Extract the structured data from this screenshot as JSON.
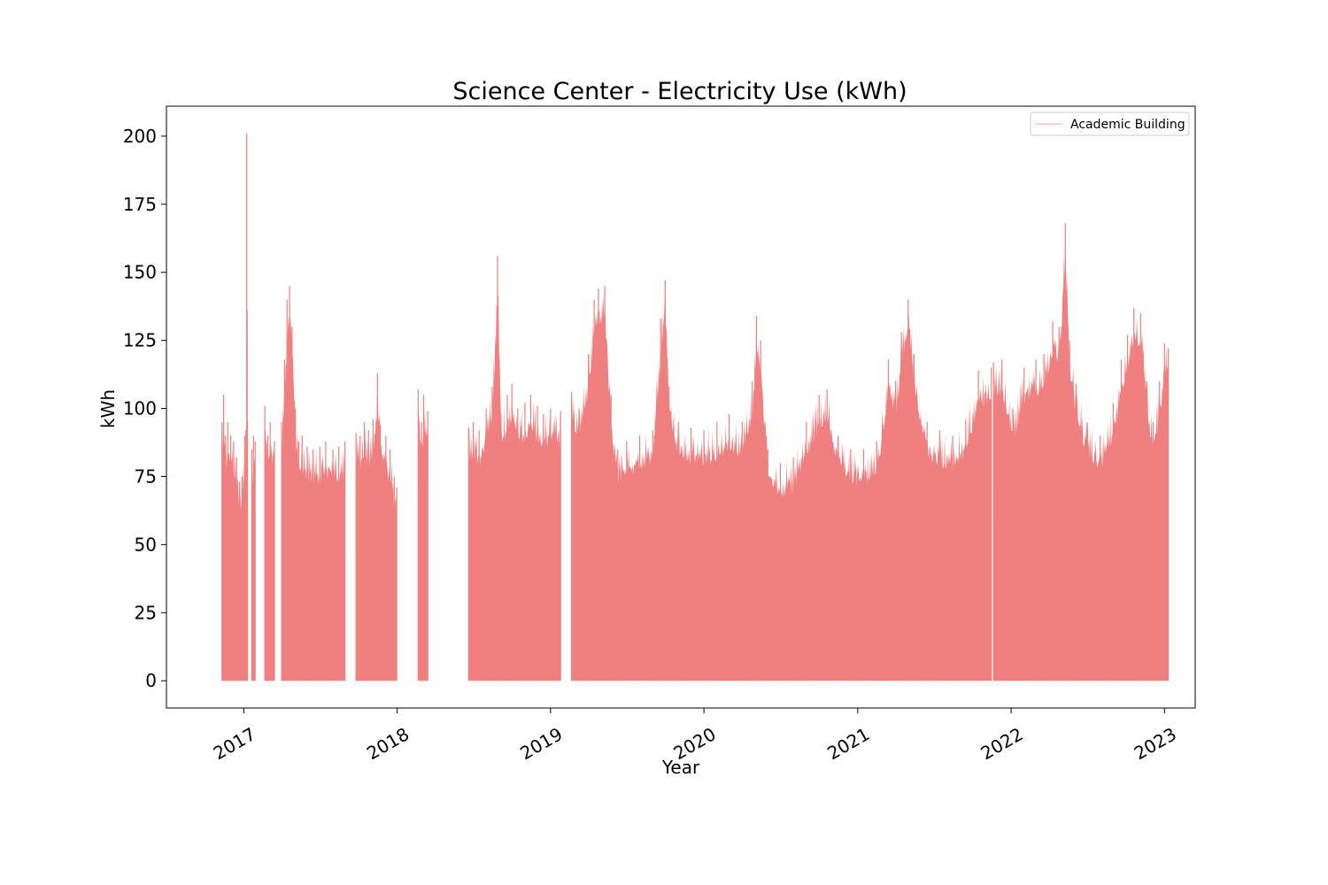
{
  "chart_data": {
    "type": "area",
    "title": "Science Center - Electricity Use (kWh)",
    "xlabel": "Year",
    "ylabel": "kWh",
    "xlim": [
      "2016-07-01",
      "2023-03-15"
    ],
    "ylim": [
      -10,
      211
    ],
    "xticks": [
      "2017",
      "2018",
      "2019",
      "2020",
      "2021",
      "2022",
      "2023"
    ],
    "yticks": [
      0,
      25,
      50,
      75,
      100,
      125,
      150,
      175,
      200
    ],
    "grid": false,
    "legend": {
      "placement": "top-right",
      "entries": [
        "Academic Building"
      ]
    },
    "colors": {
      "fill": "#f08080",
      "legend_line": "#f4b8b8",
      "axes": "#000000"
    },
    "series": [
      {
        "name": "Academic Building",
        "segments": [
          {
            "start": "2016-11-10",
            "end": "2017-01-10",
            "points": [
              [
                "2016-11-10",
                95
              ],
              [
                "2016-11-14",
                105
              ],
              [
                "2016-11-18",
                90
              ],
              [
                "2016-11-24",
                95
              ],
              [
                "2016-12-01",
                90
              ],
              [
                "2016-12-08",
                88
              ],
              [
                "2016-12-15",
                82
              ],
              [
                "2016-12-22",
                73
              ],
              [
                "2016-12-28",
                75
              ],
              [
                "2017-01-03",
                90
              ],
              [
                "2017-01-06",
                92
              ],
              [
                "2017-01-08",
                201
              ],
              [
                "2017-01-10",
                95
              ]
            ]
          },
          {
            "start": "2017-01-20",
            "end": "2017-01-28",
            "points": [
              [
                "2017-01-20",
                85
              ],
              [
                "2017-01-24",
                90
              ],
              [
                "2017-01-28",
                88
              ]
            ]
          },
          {
            "start": "2017-02-20",
            "end": "2017-03-15",
            "points": [
              [
                "2017-02-20",
                101
              ],
              [
                "2017-02-27",
                90
              ],
              [
                "2017-03-05",
                95
              ],
              [
                "2017-03-15",
                88
              ]
            ]
          },
          {
            "start": "2017-04-01",
            "end": "2017-08-30",
            "points": [
              [
                "2017-04-01",
                95
              ],
              [
                "2017-04-08",
                118
              ],
              [
                "2017-04-14",
                140
              ],
              [
                "2017-04-20",
                145
              ],
              [
                "2017-04-26",
                130
              ],
              [
                "2017-05-04",
                100
              ],
              [
                "2017-05-12",
                88
              ],
              [
                "2017-05-20",
                90
              ],
              [
                "2017-06-01",
                86
              ],
              [
                "2017-06-15",
                85
              ],
              [
                "2017-07-01",
                86
              ],
              [
                "2017-07-15",
                88
              ],
              [
                "2017-08-01",
                85
              ],
              [
                "2017-08-15",
                86
              ],
              [
                "2017-08-30",
                88
              ]
            ]
          },
          {
            "start": "2017-09-25",
            "end": "2017-12-31",
            "points": [
              [
                "2017-09-25",
                91
              ],
              [
                "2017-10-05",
                90
              ],
              [
                "2017-10-15",
                95
              ],
              [
                "2017-10-25",
                92
              ],
              [
                "2017-11-05",
                96
              ],
              [
                "2017-11-15",
                113
              ],
              [
                "2017-11-22",
                94
              ],
              [
                "2017-12-05",
                90
              ],
              [
                "2017-12-15",
                85
              ],
              [
                "2017-12-25",
                75
              ],
              [
                "2017-12-31",
                71
              ]
            ]
          },
          {
            "start": "2018-02-20",
            "end": "2018-03-15",
            "points": [
              [
                "2018-02-20",
                107
              ],
              [
                "2018-02-28",
                95
              ],
              [
                "2018-03-05",
                105
              ],
              [
                "2018-03-15",
                99
              ]
            ]
          },
          {
            "start": "2018-06-20",
            "end": "2019-01-25",
            "points": [
              [
                "2018-06-20",
                93
              ],
              [
                "2018-07-01",
                95
              ],
              [
                "2018-07-15",
                92
              ],
              [
                "2018-08-01",
                100
              ],
              [
                "2018-08-15",
                108
              ],
              [
                "2018-08-28",
                156
              ],
              [
                "2018-09-05",
                98
              ],
              [
                "2018-09-20",
                105
              ],
              [
                "2018-10-01",
                109
              ],
              [
                "2018-10-15",
                100
              ],
              [
                "2018-11-01",
                102
              ],
              [
                "2018-11-15",
                105
              ],
              [
                "2018-12-01",
                101
              ],
              [
                "2018-12-15",
                98
              ],
              [
                "2019-01-01",
                100
              ],
              [
                "2019-01-25",
                99
              ]
            ]
          },
          {
            "start": "2019-02-20",
            "end": "2021-11-15",
            "points": [
              [
                "2019-02-20",
                106
              ],
              [
                "2019-03-10",
                100
              ],
              [
                "2019-04-01",
                120
              ],
              [
                "2019-04-15",
                140
              ],
              [
                "2019-04-25",
                144
              ],
              [
                "2019-05-10",
                145
              ],
              [
                "2019-05-25",
                105
              ],
              [
                "2019-06-10",
                85
              ],
              [
                "2019-07-01",
                88
              ],
              [
                "2019-08-01",
                90
              ],
              [
                "2019-09-01",
                92
              ],
              [
                "2019-09-20",
                133
              ],
              [
                "2019-10-01",
                147
              ],
              [
                "2019-10-10",
                108
              ],
              [
                "2019-11-01",
                95
              ],
              [
                "2019-12-01",
                93
              ],
              [
                "2020-01-01",
                92
              ],
              [
                "2020-02-01",
                95
              ],
              [
                "2020-03-01",
                98
              ],
              [
                "2020-04-01",
                95
              ],
              [
                "2020-04-25",
                110
              ],
              [
                "2020-05-05",
                134
              ],
              [
                "2020-05-15",
                125
              ],
              [
                "2020-06-01",
                85
              ],
              [
                "2020-07-01",
                80
              ],
              [
                "2020-08-01",
                82
              ],
              [
                "2020-09-01",
                95
              ],
              [
                "2020-10-01",
                105
              ],
              [
                "2020-10-20",
                107
              ],
              [
                "2020-11-15",
                90
              ],
              [
                "2020-12-15",
                85
              ],
              [
                "2021-01-15",
                85
              ],
              [
                "2021-02-15",
                88
              ],
              [
                "2021-03-15",
                118
              ],
              [
                "2021-04-01",
                110
              ],
              [
                "2021-04-15",
                128
              ],
              [
                "2021-05-01",
                140
              ],
              [
                "2021-05-15",
                120
              ],
              [
                "2021-06-15",
                95
              ],
              [
                "2021-07-15",
                92
              ],
              [
                "2021-08-15",
                90
              ],
              [
                "2021-09-15",
                96
              ],
              [
                "2021-10-15",
                114
              ],
              [
                "2021-11-15",
                115
              ]
            ]
          },
          {
            "start": "2021-11-20",
            "end": "2023-01-10",
            "points": [
              [
                "2021-11-20",
                117
              ],
              [
                "2021-12-10",
                118
              ],
              [
                "2022-01-05",
                100
              ],
              [
                "2022-02-01",
                115
              ],
              [
                "2022-03-01",
                118
              ],
              [
                "2022-03-20",
                120
              ],
              [
                "2022-04-10",
                132
              ],
              [
                "2022-04-25",
                130
              ],
              [
                "2022-05-10",
                168
              ],
              [
                "2022-05-20",
                125
              ],
              [
                "2022-06-05",
                109
              ],
              [
                "2022-07-01",
                95
              ],
              [
                "2022-08-01",
                90
              ],
              [
                "2022-09-01",
                102
              ],
              [
                "2022-09-20",
                118
              ],
              [
                "2022-10-05",
                127
              ],
              [
                "2022-10-20",
                137
              ],
              [
                "2022-11-05",
                135
              ],
              [
                "2022-11-20",
                110
              ],
              [
                "2022-12-05",
                95
              ],
              [
                "2022-12-20",
                110
              ],
              [
                "2023-01-01",
                124
              ],
              [
                "2023-01-10",
                122
              ]
            ]
          }
        ]
      }
    ]
  }
}
